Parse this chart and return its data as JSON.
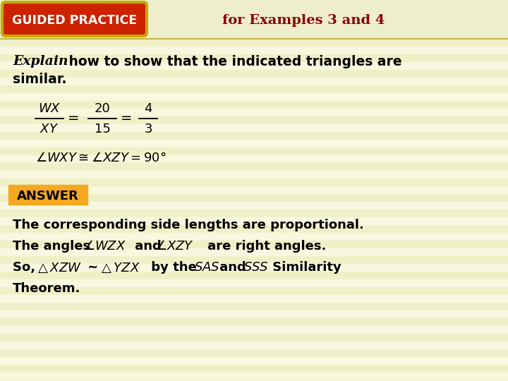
{
  "bg_color": "#f5f5d8",
  "stripe_colors": [
    "#f0f0c8",
    "#f8f8e0"
  ],
  "header_bg": "#f0f0c8",
  "header_border_color": "#c8b840",
  "gp_bg": "#cc2200",
  "gp_border": "#c8a800",
  "gp_text": "GUIDED PRACTICE",
  "gp_text_color": "#ffffff",
  "for_text": "for Examples 3 and 4",
  "for_text_color": "#8b0000",
  "answer_bg": "#f5a820",
  "answer_text": "ANSWER",
  "body_line1": "The corresponding side lengths are proportional.",
  "body_line4": "Theorem."
}
